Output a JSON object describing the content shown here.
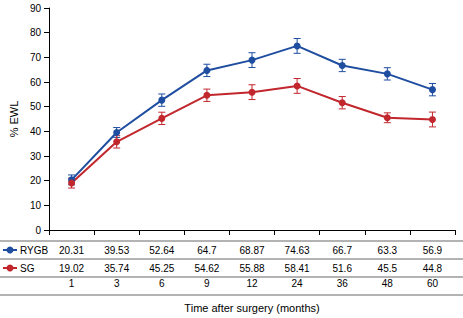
{
  "chart_data": {
    "type": "line",
    "x_label": "Time after surgery (months)",
    "y_label": "% EWL",
    "categories": [
      "1",
      "3",
      "6",
      "9",
      "12",
      "24",
      "36",
      "48",
      "60"
    ],
    "series": [
      {
        "name": "RYGB",
        "color": "#1f4ea0",
        "marker": "circle",
        "values": [
          20.31,
          39.53,
          52.64,
          64.7,
          68.87,
          74.63,
          66.7,
          63.3,
          56.9
        ],
        "errors": [
          2,
          2,
          2.5,
          2.5,
          3,
          3,
          2.5,
          2.5,
          2.5
        ]
      },
      {
        "name": "SG",
        "color": "#c1272d",
        "marker": "circle",
        "values": [
          19.02,
          35.74,
          45.25,
          54.62,
          55.88,
          58.41,
          51.6,
          45.5,
          44.8
        ],
        "errors": [
          2,
          2.5,
          2.5,
          2.5,
          3,
          3,
          2.5,
          2,
          3
        ]
      }
    ],
    "ylim": [
      0,
      90
    ],
    "yticks": [
      0,
      10,
      20,
      30,
      40,
      50,
      60,
      70,
      80,
      90
    ],
    "grid": false
  }
}
